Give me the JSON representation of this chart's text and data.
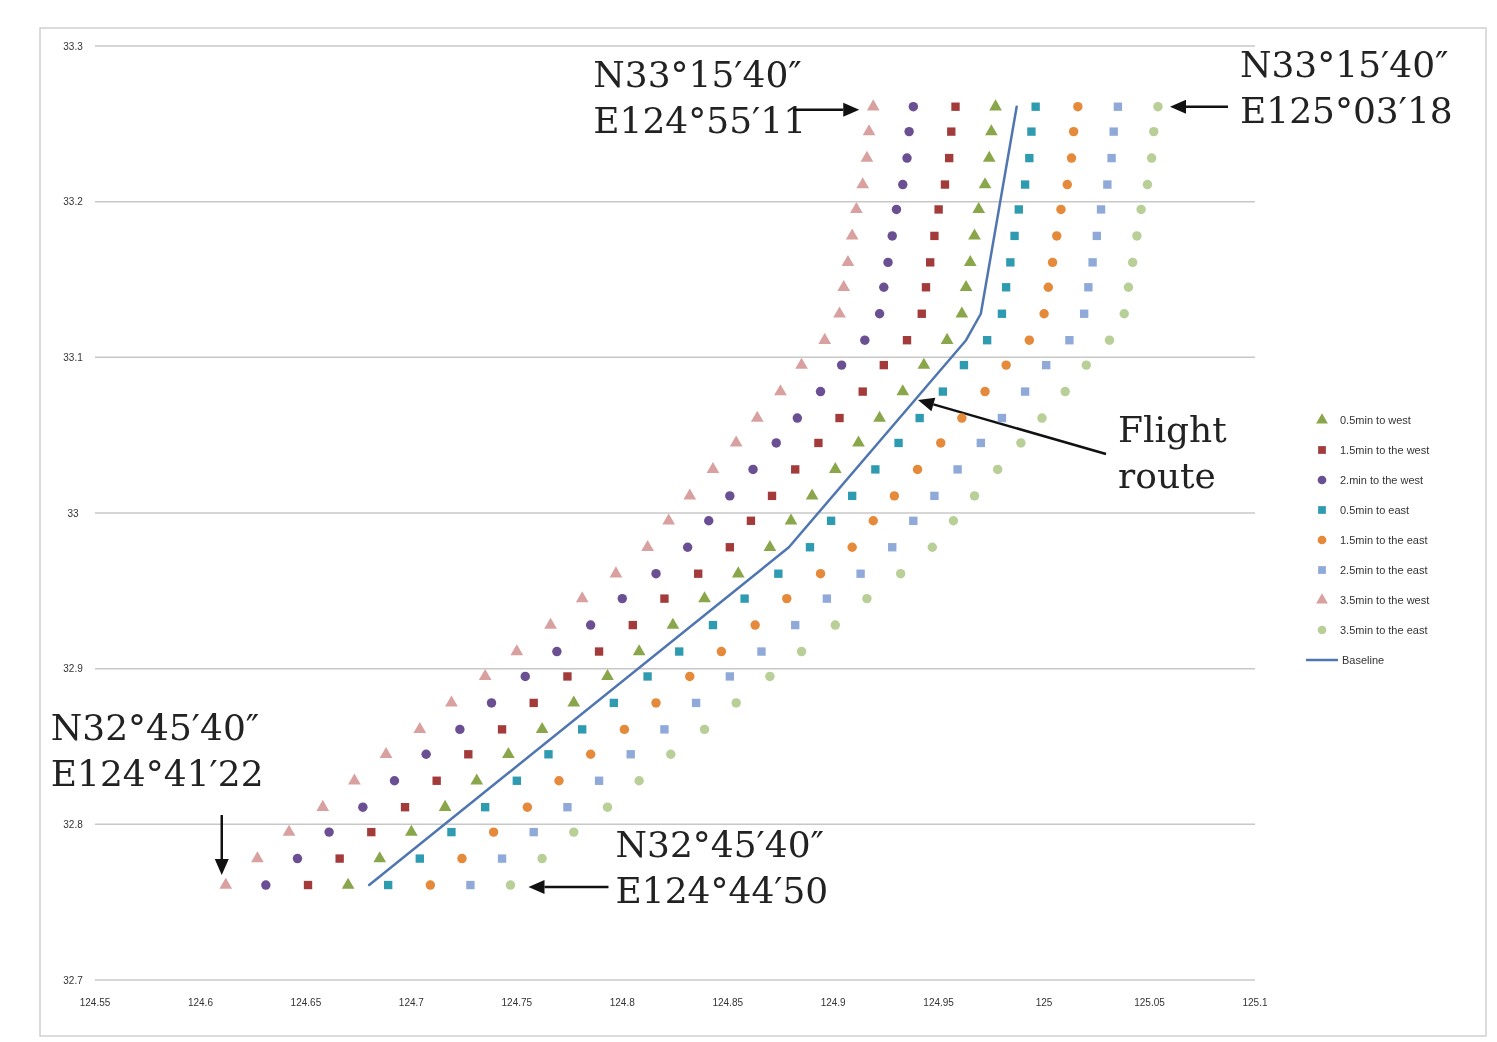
{
  "chart_data": {
    "type": "scatter",
    "xlim": [
      124.55,
      125.1
    ],
    "ylim": [
      32.7,
      33.3
    ],
    "xticks": [
      124.55,
      124.6,
      124.65,
      124.7,
      124.75,
      124.8,
      124.85,
      124.9,
      124.95,
      125,
      125.05,
      125.1
    ],
    "yticks": [
      32.7,
      32.8,
      32.9,
      33,
      33.1,
      33.2,
      33.3
    ],
    "grid": "y",
    "legend": "right",
    "annotations": [
      {
        "text": "N33°15′40″\nE124°55′11",
        "x": 124.919,
        "y": 33.261
      },
      {
        "text": "N33°15′40″\nE125°03′18",
        "x": 125.054,
        "y": 33.261
      },
      {
        "text": "N32°45′40″\nE124°41′22",
        "x": 124.612,
        "y": 32.761
      },
      {
        "text": "N32°45′40″\nE124°44′50",
        "x": 124.747,
        "y": 32.761
      },
      "Flight\nroute"
    ],
    "series": [
      {
        "name": "0.5min to west",
        "color": "#8aa64a",
        "marker": "triangle",
        "x": [
          124.67,
          124.685,
          124.7,
          124.716,
          124.731,
          124.746,
          124.762,
          124.777,
          124.793,
          124.808,
          124.824,
          124.839,
          124.855,
          124.87,
          124.88,
          124.89,
          124.901,
          124.912,
          124.922,
          124.933,
          124.943,
          124.954,
          124.961,
          124.963,
          124.965,
          124.967,
          124.969,
          124.972,
          124.974,
          124.975,
          124.977
        ],
        "values": [
          32.761,
          32.778,
          32.795,
          32.811,
          32.828,
          32.845,
          32.861,
          32.878,
          32.895,
          32.911,
          32.928,
          32.945,
          32.961,
          32.978,
          32.995,
          33.011,
          33.028,
          33.045,
          33.061,
          33.078,
          33.095,
          33.111,
          33.128,
          33.145,
          33.161,
          33.178,
          33.195,
          33.211,
          33.228,
          33.245,
          33.261
        ]
      },
      {
        "name": "1.5min to the west",
        "color": "#a33b3b",
        "marker": "square",
        "x": [
          124.651,
          124.666,
          124.681,
          124.697,
          124.712,
          124.727,
          124.743,
          124.758,
          124.774,
          124.789,
          124.805,
          124.82,
          124.836,
          124.851,
          124.861,
          124.871,
          124.882,
          124.893,
          124.903,
          124.914,
          124.924,
          124.935,
          124.942,
          124.944,
          124.946,
          124.948,
          124.95,
          124.953,
          124.955,
          124.956,
          124.958
        ],
        "values": [
          32.761,
          32.778,
          32.795,
          32.811,
          32.828,
          32.845,
          32.861,
          32.878,
          32.895,
          32.911,
          32.928,
          32.945,
          32.961,
          32.978,
          32.995,
          33.011,
          33.028,
          33.045,
          33.061,
          33.078,
          33.095,
          33.111,
          33.128,
          33.145,
          33.161,
          33.178,
          33.195,
          33.211,
          33.228,
          33.245,
          33.261
        ]
      },
      {
        "name": "2.min to the west",
        "color": "#6b4f93",
        "marker": "circle",
        "x": [
          124.631,
          124.646,
          124.661,
          124.677,
          124.692,
          124.707,
          124.723,
          124.738,
          124.754,
          124.769,
          124.785,
          124.8,
          124.816,
          124.831,
          124.841,
          124.851,
          124.862,
          124.873,
          124.883,
          124.894,
          124.904,
          124.915,
          124.922,
          124.924,
          124.926,
          124.928,
          124.93,
          124.933,
          124.935,
          124.936,
          124.938
        ],
        "values": [
          32.761,
          32.778,
          32.795,
          32.811,
          32.828,
          32.845,
          32.861,
          32.878,
          32.895,
          32.911,
          32.928,
          32.945,
          32.961,
          32.978,
          32.995,
          33.011,
          33.028,
          33.045,
          33.061,
          33.078,
          33.095,
          33.111,
          33.128,
          33.145,
          33.161,
          33.178,
          33.195,
          33.211,
          33.228,
          33.245,
          33.261
        ]
      },
      {
        "name": "0.5min to east",
        "color": "#2e9bb0",
        "marker": "square",
        "x": [
          124.689,
          124.704,
          124.719,
          124.735,
          124.75,
          124.765,
          124.781,
          124.796,
          124.812,
          124.827,
          124.843,
          124.858,
          124.874,
          124.889,
          124.899,
          124.909,
          124.92,
          124.931,
          124.941,
          124.952,
          124.962,
          124.973,
          124.98,
          124.982,
          124.984,
          124.986,
          124.988,
          124.991,
          124.993,
          124.994,
          124.996
        ],
        "values": [
          32.761,
          32.778,
          32.795,
          32.811,
          32.828,
          32.845,
          32.861,
          32.878,
          32.895,
          32.911,
          32.928,
          32.945,
          32.961,
          32.978,
          32.995,
          33.011,
          33.028,
          33.045,
          33.061,
          33.078,
          33.095,
          33.111,
          33.128,
          33.145,
          33.161,
          33.178,
          33.195,
          33.211,
          33.228,
          33.245,
          33.261
        ]
      },
      {
        "name": "1.5min to the east",
        "color": "#e58a3a",
        "marker": "circle",
        "x": [
          124.709,
          124.724,
          124.739,
          124.755,
          124.77,
          124.785,
          124.801,
          124.816,
          124.832,
          124.847,
          124.863,
          124.878,
          124.894,
          124.909,
          124.919,
          124.929,
          124.94,
          124.951,
          124.961,
          124.972,
          124.982,
          124.993,
          125.0,
          125.002,
          125.004,
          125.006,
          125.008,
          125.011,
          125.013,
          125.014,
          125.016
        ],
        "values": [
          32.761,
          32.778,
          32.795,
          32.811,
          32.828,
          32.845,
          32.861,
          32.878,
          32.895,
          32.911,
          32.928,
          32.945,
          32.961,
          32.978,
          32.995,
          33.011,
          33.028,
          33.045,
          33.061,
          33.078,
          33.095,
          33.111,
          33.128,
          33.145,
          33.161,
          33.178,
          33.195,
          33.211,
          33.228,
          33.245,
          33.261
        ]
      },
      {
        "name": "2.5min to the east",
        "color": "#8fa9d8",
        "marker": "square",
        "x": [
          124.728,
          124.743,
          124.758,
          124.774,
          124.789,
          124.804,
          124.82,
          124.835,
          124.851,
          124.866,
          124.882,
          124.897,
          124.913,
          124.928,
          124.938,
          124.948,
          124.959,
          124.97,
          124.98,
          124.991,
          125.001,
          125.012,
          125.019,
          125.021,
          125.023,
          125.025,
          125.027,
          125.03,
          125.032,
          125.033,
          125.035
        ],
        "values": [
          32.761,
          32.778,
          32.795,
          32.811,
          32.828,
          32.845,
          32.861,
          32.878,
          32.895,
          32.911,
          32.928,
          32.945,
          32.961,
          32.978,
          32.995,
          33.011,
          33.028,
          33.045,
          33.061,
          33.078,
          33.095,
          33.111,
          33.128,
          33.145,
          33.161,
          33.178,
          33.195,
          33.211,
          33.228,
          33.245,
          33.261
        ]
      },
      {
        "name": "3.5min to the west",
        "color": "#d9a0a0",
        "marker": "triangle",
        "x": [
          124.612,
          124.627,
          124.642,
          124.658,
          124.673,
          124.688,
          124.704,
          124.719,
          124.735,
          124.75,
          124.766,
          124.781,
          124.797,
          124.812,
          124.822,
          124.832,
          124.843,
          124.854,
          124.864,
          124.875,
          124.885,
          124.896,
          124.903,
          124.905,
          124.907,
          124.909,
          124.911,
          124.914,
          124.916,
          124.917,
          124.919
        ],
        "values": [
          32.761,
          32.778,
          32.795,
          32.811,
          32.828,
          32.845,
          32.861,
          32.878,
          32.895,
          32.911,
          32.928,
          32.945,
          32.961,
          32.978,
          32.995,
          33.011,
          33.028,
          33.045,
          33.061,
          33.078,
          33.095,
          33.111,
          33.128,
          33.145,
          33.161,
          33.178,
          33.195,
          33.211,
          33.228,
          33.245,
          33.261
        ]
      },
      {
        "name": "3.5min to the east",
        "color": "#b9cf98",
        "marker": "circle",
        "x": [
          124.747,
          124.762,
          124.777,
          124.793,
          124.808,
          124.823,
          124.839,
          124.854,
          124.87,
          124.885,
          124.901,
          124.916,
          124.932,
          124.947,
          124.957,
          124.967,
          124.978,
          124.989,
          124.999,
          125.01,
          125.02,
          125.031,
          125.038,
          125.04,
          125.042,
          125.044,
          125.046,
          125.049,
          125.051,
          125.052,
          125.054
        ],
        "values": [
          32.761,
          32.778,
          32.795,
          32.811,
          32.828,
          32.845,
          32.861,
          32.878,
          32.895,
          32.911,
          32.928,
          32.945,
          32.961,
          32.978,
          32.995,
          33.011,
          33.028,
          33.045,
          33.061,
          33.078,
          33.095,
          33.111,
          33.128,
          33.145,
          33.161,
          33.178,
          33.195,
          33.211,
          33.228,
          33.245,
          33.261
        ]
      },
      {
        "name": "Baseline",
        "type": "line",
        "color": "#4f76b0",
        "marker": "none",
        "x": [
          124.68,
          124.879,
          124.963,
          124.97,
          124.987
        ],
        "values": [
          32.761,
          32.978,
          33.111,
          33.128,
          33.261
        ]
      }
    ]
  }
}
